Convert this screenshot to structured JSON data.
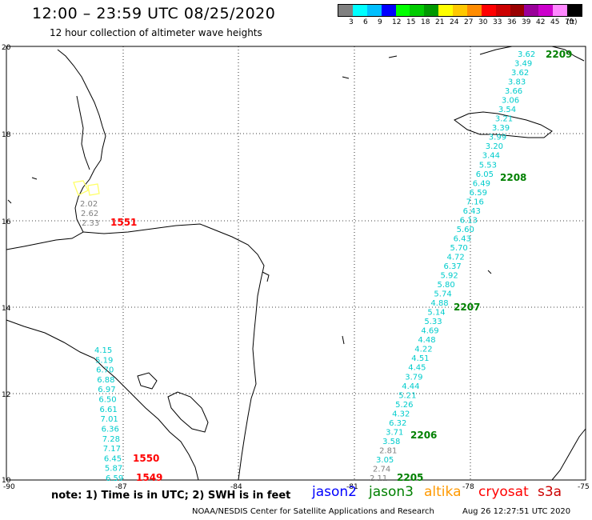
{
  "header": {
    "title": "12:00 – 23:59 UTC 08/25/2020",
    "subtitle": "12 hour collection of altimeter wave heights"
  },
  "legend": {
    "colors": [
      "#808080",
      "#00ffff",
      "#00bfff",
      "#0000ff",
      "#00ff00",
      "#00cc00",
      "#009900",
      "#ffff00",
      "#ffc800",
      "#ff8c00",
      "#ff0000",
      "#cc0000",
      "#990000",
      "#990099",
      "#cc00cc",
      "#ff88ff",
      "#000000"
    ],
    "labels": [
      "3",
      "6",
      "9",
      "12",
      "15",
      "18",
      "21",
      "24",
      "27",
      "30",
      "33",
      "36",
      "39",
      "42",
      "45",
      "70"
    ],
    "unit": "(ft)"
  },
  "axes": {
    "lon_ticks": [
      "-90",
      "-87",
      "-84",
      "-81",
      "-78",
      "-75"
    ],
    "lat_ticks": [
      "20",
      "18",
      "16",
      "14",
      "12",
      "10"
    ]
  },
  "tracks": {
    "east_points": [
      "3.62",
      "3.49",
      "3.62",
      "3.83",
      "3.66",
      "3.06",
      "3.54",
      "3.21",
      "3.39",
      "3.99",
      "3.20",
      "3.44",
      "5.53",
      "6.05",
      "6.49",
      "6.59",
      "7.16",
      "6.43",
      "6.13",
      "5.60",
      "6.43",
      "5.70",
      "4.72",
      "6.37",
      "5.92",
      "5.80",
      "5.74",
      "4.88",
      "5.14",
      "5.33",
      "4.69",
      "4.48",
      "4.22",
      "4.51",
      "4.45",
      "3.79",
      "4.44",
      "5.21",
      "5.26",
      "4.32",
      "6.32",
      "3.71",
      "3.58",
      "2.81",
      "3.05",
      "2.74",
      "2.11"
    ],
    "west_points": [
      "4.15",
      "5.19",
      "6.70",
      "6.88",
      "6.97",
      "6.50",
      "6.61",
      "7.01",
      "6.36",
      "7.28",
      "7.17",
      "6.45",
      "5.87",
      "6.59"
    ],
    "north_points": [
      "2.02",
      "2.62",
      "2.33"
    ],
    "time_labels": {
      "t2209": "2209",
      "t2208": "2208",
      "t2207": "2207",
      "t2206": "2206",
      "t2205": "2205",
      "t1551": "1551",
      "t1550": "1550",
      "t1549": "1549"
    },
    "colors": {
      "cyan": "#00cccc",
      "gray": "#808080",
      "green": "#008000",
      "red": "#ff0000",
      "yellow": "#ffff66"
    }
  },
  "footer": {
    "note": "note: 1) Time is in UTC; 2) SWH is in feet",
    "satellites": [
      "jason2",
      "jason3",
      "altika",
      "cryosat",
      "s3a"
    ],
    "satellite_colors": [
      "#0000ff",
      "#008000",
      "#ff9900",
      "#ff0000",
      "#cc0000"
    ],
    "credit": "NOAA/NESDIS Center for Satellite Applications and Research",
    "timestamp": "Aug 26 12:27:51 UTC 2020"
  }
}
